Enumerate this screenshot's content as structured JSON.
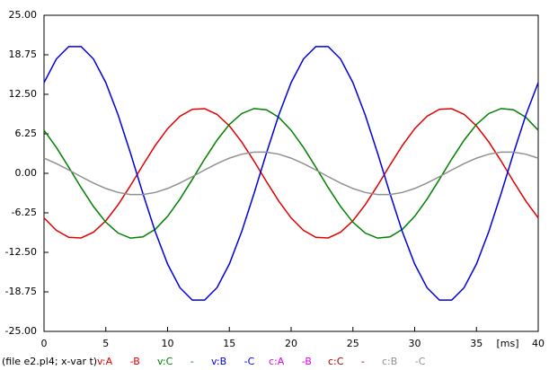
{
  "chart_data": {
    "type": "line",
    "xlabel": "[ms]",
    "file_label": "(file e2.pl4; x-var t)",
    "x": [
      0,
      1,
      2,
      3,
      4,
      5,
      6,
      7,
      8,
      9,
      10,
      11,
      12,
      13,
      14,
      15,
      16,
      17,
      18,
      19,
      20,
      21,
      22,
      23,
      24,
      25,
      26,
      27,
      28,
      29,
      30,
      31,
      32,
      33,
      34,
      35,
      36,
      37,
      38,
      39,
      40
    ],
    "series": [
      {
        "name": "v:A -B",
        "color": "#e00000",
        "values": [
          -7.05,
          -9.03,
          -10.12,
          -10.22,
          -9.32,
          -7.51,
          -4.96,
          -1.93,
          1.29,
          4.39,
          7.05,
          9.03,
          10.12,
          10.22,
          9.32,
          7.51,
          4.96,
          1.93,
          -1.29,
          -4.39,
          -7.05,
          -9.03,
          -10.12,
          -10.22,
          -9.32,
          -7.51,
          -4.96,
          -1.93,
          1.29,
          4.39,
          7.05,
          9.03,
          10.12,
          10.22,
          9.32,
          7.51,
          4.96,
          1.93,
          -1.29,
          -4.39,
          -7.05
        ]
      },
      {
        "name": "v:C -",
        "color": "#008000",
        "values": [
          6.81,
          4.09,
          0.97,
          -2.25,
          -5.24,
          -7.73,
          -9.45,
          -10.25,
          -10.05,
          -8.87,
          -6.81,
          -4.09,
          -0.97,
          2.25,
          5.24,
          7.73,
          9.45,
          10.25,
          10.05,
          8.87,
          6.81,
          4.09,
          0.97,
          -2.25,
          -5.24,
          -7.73,
          -9.45,
          -10.25,
          -10.05,
          -8.87,
          -6.81,
          -4.09,
          -0.97,
          2.25,
          5.24,
          7.73,
          9.45,
          10.25,
          10.05,
          8.87,
          6.81
        ]
      },
      {
        "name": "v:B -C",
        "color": "#0000e0",
        "values": [
          14.35,
          18.09,
          20.05,
          20.05,
          18.09,
          14.35,
          9.22,
          3.18,
          -3.18,
          -9.22,
          -14.35,
          -18.09,
          -20.05,
          -20.05,
          -18.09,
          -14.35,
          -9.22,
          -3.18,
          3.18,
          9.22,
          14.35,
          18.09,
          20.05,
          20.05,
          18.09,
          14.35,
          9.22,
          3.18,
          -3.18,
          -9.22,
          -14.35,
          -18.09,
          -20.05,
          -20.05,
          -18.09,
          -14.35,
          -9.22,
          -3.18,
          3.18,
          9.22,
          14.35
        ]
      },
      {
        "name": "c:A -B",
        "color": "#e000e0",
        "values": [
          null,
          null,
          null,
          null,
          null,
          null,
          null,
          null,
          null,
          null,
          null,
          null,
          null,
          null,
          null,
          null,
          null,
          null,
          null,
          null,
          null,
          null,
          null,
          null,
          null,
          null,
          null,
          null,
          null,
          null,
          null,
          null,
          null,
          null,
          null,
          null,
          null,
          null,
          null,
          null,
          null
        ]
      },
      {
        "name": "c:C -",
        "color": "#a00000",
        "values": [
          null,
          null,
          null,
          null,
          null,
          null,
          null,
          null,
          null,
          null,
          null,
          null,
          null,
          null,
          null,
          null,
          null,
          null,
          null,
          null,
          null,
          null,
          null,
          null,
          null,
          null,
          null,
          null,
          null,
          null,
          null,
          null,
          null,
          null,
          null,
          null,
          null,
          null,
          null,
          null,
          null
        ]
      },
      {
        "name": "c:B -C",
        "color": "#909090",
        "values": [
          2.4,
          1.54,
          0.53,
          -0.53,
          -1.54,
          -2.4,
          -3.03,
          -3.36,
          -3.36,
          -3.03,
          -2.4,
          -1.54,
          -0.53,
          0.53,
          1.54,
          2.4,
          3.03,
          3.36,
          3.36,
          3.03,
          2.4,
          1.54,
          0.53,
          -0.53,
          -1.54,
          -2.4,
          -3.03,
          -3.36,
          -3.36,
          -3.03,
          -2.4,
          -1.54,
          -0.53,
          0.53,
          1.54,
          2.4,
          3.03,
          3.36,
          3.36,
          3.03,
          2.4
        ]
      }
    ],
    "xlim": [
      0,
      40
    ],
    "xticks": [
      0,
      5,
      10,
      15,
      20,
      25,
      30,
      35,
      40
    ],
    "ylim": [
      -25,
      25
    ],
    "yticks": [
      {
        "value": 25,
        "label": "25.00"
      },
      {
        "value": 18.75,
        "label": "18.75"
      },
      {
        "value": 12.5,
        "label": "12.50"
      },
      {
        "value": 6.25,
        "label": "6.25"
      },
      {
        "value": 0,
        "label": "0.00"
      },
      {
        "value": -6.25,
        "label": "-6.25"
      },
      {
        "value": -12.5,
        "label": "-12.50"
      },
      {
        "value": -18.75,
        "label": "-18.75"
      },
      {
        "value": -25,
        "label": "-25.00"
      }
    ],
    "grid": false
  }
}
